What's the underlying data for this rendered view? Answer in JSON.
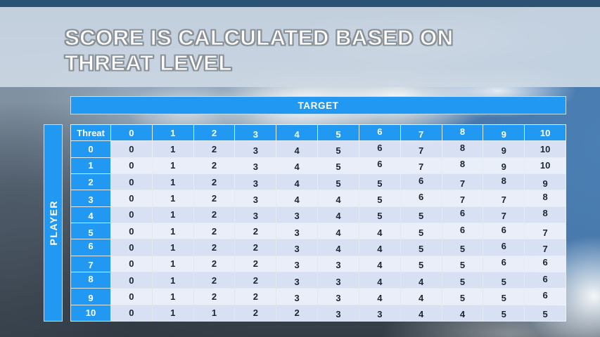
{
  "slide_title": {
    "line1": "SCORE IS CALCULATED BASED ON",
    "line2": "THREAT LEVEL"
  },
  "matrix": {
    "target_label": "TARGET",
    "player_label": "PLAYER",
    "corner_label": "Threat",
    "column_headers": [
      "0",
      "1",
      "2",
      "3",
      "4",
      "5",
      "6",
      "7",
      "8",
      "9",
      "10"
    ],
    "rows": [
      {
        "label": "0",
        "values": [
          0,
          1,
          2,
          3,
          4,
          5,
          6,
          7,
          8,
          9,
          10
        ]
      },
      {
        "label": "1",
        "values": [
          0,
          1,
          2,
          3,
          4,
          5,
          6,
          7,
          8,
          9,
          10
        ]
      },
      {
        "label": "2",
        "values": [
          0,
          1,
          2,
          3,
          4,
          5,
          5,
          6,
          7,
          8,
          9
        ]
      },
      {
        "label": "3",
        "values": [
          0,
          1,
          2,
          3,
          4,
          4,
          5,
          6,
          7,
          7,
          8
        ]
      },
      {
        "label": "4",
        "values": [
          0,
          1,
          2,
          3,
          3,
          4,
          5,
          5,
          6,
          7,
          8
        ]
      },
      {
        "label": "5",
        "values": [
          0,
          1,
          2,
          2,
          3,
          4,
          4,
          5,
          6,
          6,
          7
        ]
      },
      {
        "label": "6",
        "values": [
          0,
          1,
          2,
          2,
          3,
          4,
          4,
          5,
          5,
          6,
          7
        ]
      },
      {
        "label": "7",
        "values": [
          0,
          1,
          2,
          2,
          3,
          3,
          4,
          5,
          5,
          6,
          6
        ]
      },
      {
        "label": "8",
        "values": [
          0,
          1,
          2,
          2,
          3,
          3,
          4,
          4,
          5,
          5,
          6
        ]
      },
      {
        "label": "9",
        "values": [
          0,
          1,
          2,
          2,
          3,
          3,
          4,
          4,
          5,
          5,
          6
        ]
      },
      {
        "label": "10",
        "values": [
          0,
          1,
          1,
          2,
          2,
          3,
          3,
          4,
          4,
          5,
          5
        ]
      }
    ]
  },
  "colors": {
    "accent_blue": "#2199f2",
    "row_band_dark": "#d8e1f4",
    "row_band_light": "#eaeef9",
    "header_text": "#ffffff",
    "value_text": "#1d2530",
    "title_text": "#ffffff",
    "title_outline": "#8b9298",
    "top_strip": "#2b5273"
  }
}
